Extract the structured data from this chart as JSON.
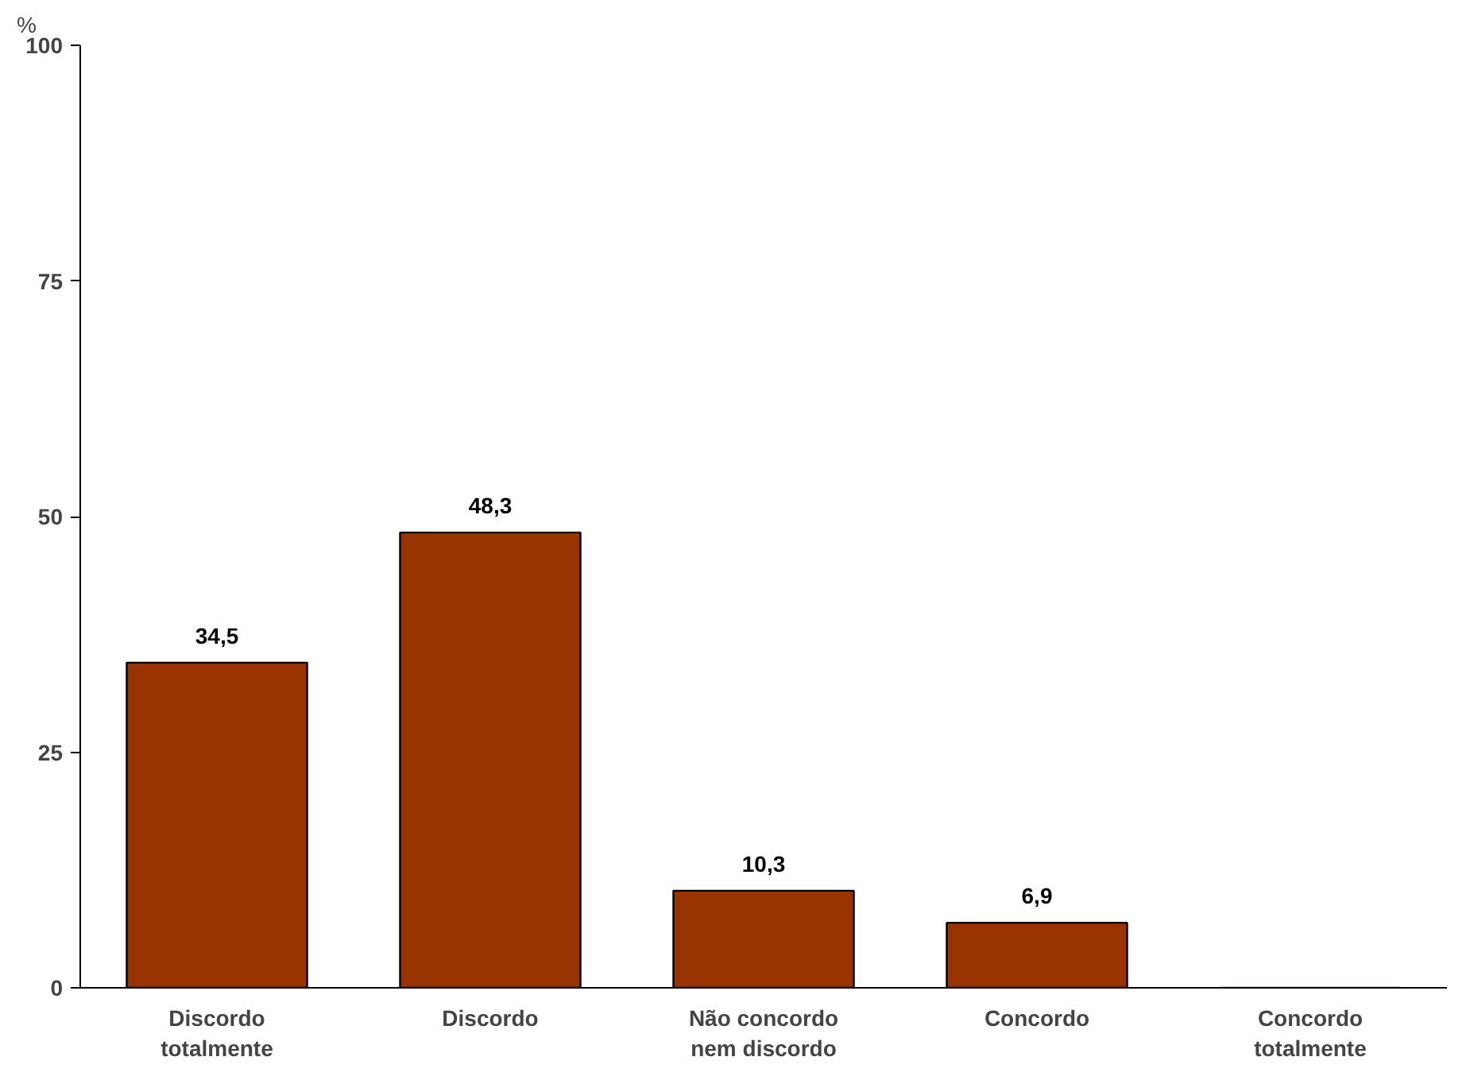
{
  "chart_data": {
    "type": "bar",
    "ylabel": "%",
    "categories": [
      "Discordo\ntotalmente",
      "Discordo",
      "Não concordo\nnem discordo",
      "Concordo",
      "Concordo\ntotalmente"
    ],
    "values": [
      34.5,
      48.3,
      10.3,
      6.9,
      0
    ],
    "value_labels": [
      "34,5",
      "48,3",
      "10,3",
      "6,9",
      null
    ],
    "color": "#993300",
    "ylim": [
      0,
      100
    ],
    "yticks": [
      0,
      25,
      50,
      75,
      100
    ],
    "grid": false
  }
}
